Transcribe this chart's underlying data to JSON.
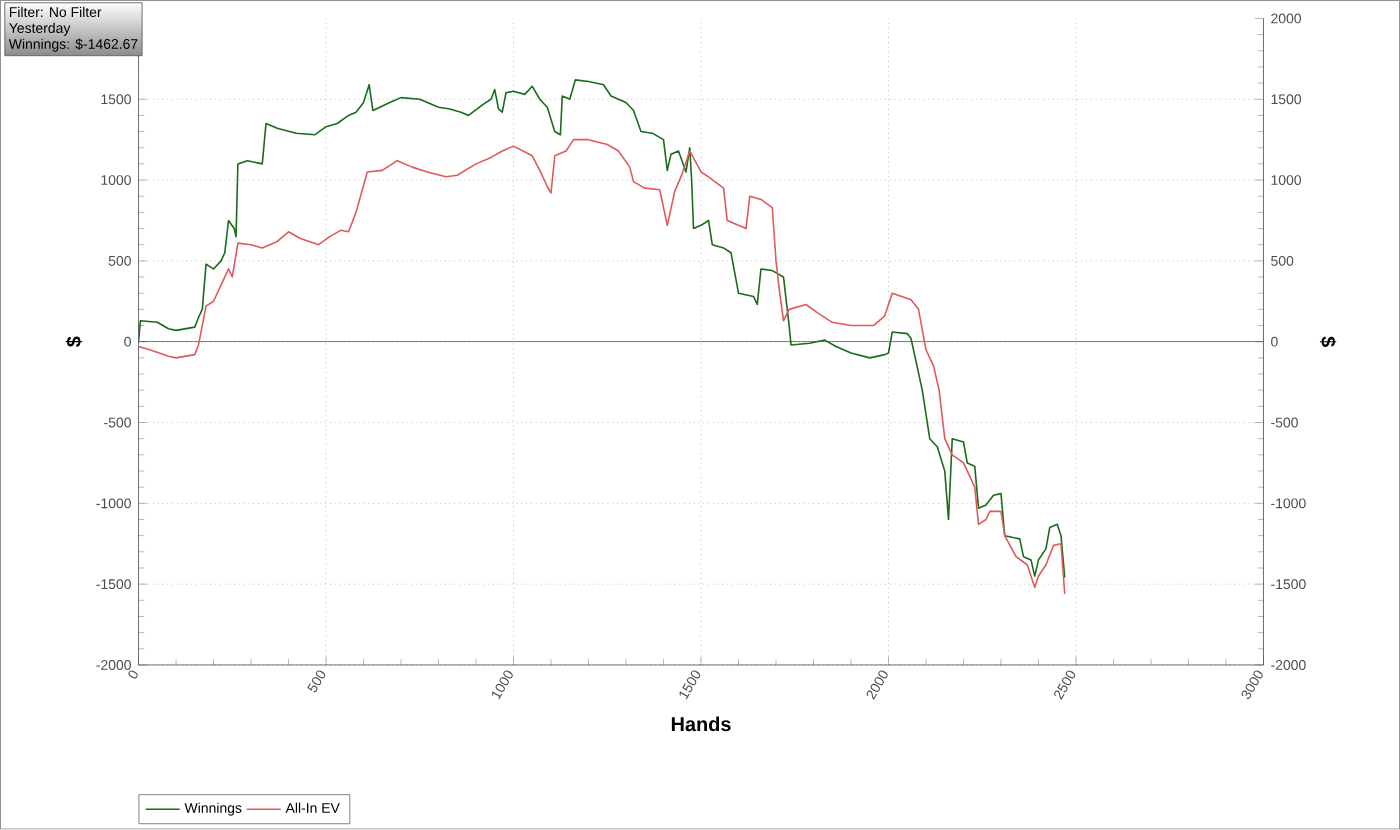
{
  "chart_data": {
    "type": "line",
    "xlabel": "Hands",
    "ylabel": "$",
    "y2label": "$",
    "annotations": [
      "Filter: No Filter",
      "Yesterday",
      "Winnings: $-1462.67"
    ],
    "xlim": [
      0,
      3000
    ],
    "xticks": [
      0,
      500,
      1000,
      1500,
      2000,
      2500,
      3000
    ],
    "ylim": [
      -2000,
      2000
    ],
    "yticks": [
      -2000,
      -1500,
      -1000,
      -500,
      0,
      500,
      1000,
      1500
    ],
    "y2lim": [
      -2000,
      2000
    ],
    "y2ticks": [
      -2000,
      -1500,
      -1000,
      -500,
      0,
      500,
      1000,
      1500,
      2000
    ],
    "grid": true,
    "legend": "bottom left",
    "marker": "none",
    "line_style": "solid",
    "ref_lines": [
      {
        "axis": "y",
        "value": 0,
        "color": "#404040"
      }
    ],
    "series": [
      {
        "name": "Winnings",
        "color": "#1a6b1a",
        "x": [
          0,
          5,
          50,
          80,
          100,
          150,
          160,
          170,
          180,
          200,
          220,
          230,
          240,
          255,
          260,
          265,
          290,
          330,
          340,
          370,
          420,
          470,
          500,
          530,
          560,
          580,
          600,
          615,
          625,
          670,
          700,
          750,
          800,
          830,
          860,
          880,
          920,
          940,
          950,
          960,
          970,
          980,
          1000,
          1030,
          1050,
          1070,
          1090,
          1110,
          1125,
          1130,
          1150,
          1165,
          1200,
          1240,
          1260,
          1300,
          1320,
          1340,
          1370,
          1400,
          1410,
          1420,
          1440,
          1460,
          1470,
          1475,
          1480,
          1500,
          1520,
          1530,
          1560,
          1580,
          1600,
          1640,
          1650,
          1660,
          1690,
          1720,
          1730,
          1735,
          1740,
          1790,
          1830,
          1860,
          1900,
          1950,
          1990,
          2000,
          2010,
          2050,
          2060,
          2090,
          2110,
          2130,
          2150,
          2160,
          2170,
          2200,
          2210,
          2230,
          2240,
          2260,
          2280,
          2300,
          2310,
          2350,
          2360,
          2380,
          2390,
          2400,
          2420,
          2430,
          2450,
          2460,
          2470
        ],
        "values": [
          0,
          130,
          120,
          80,
          70,
          90,
          150,
          200,
          480,
          450,
          500,
          550,
          750,
          700,
          650,
          1100,
          1120,
          1100,
          1350,
          1320,
          1290,
          1280,
          1330,
          1350,
          1400,
          1420,
          1480,
          1590,
          1430,
          1480,
          1510,
          1500,
          1450,
          1440,
          1420,
          1400,
          1470,
          1500,
          1560,
          1440,
          1420,
          1540,
          1550,
          1530,
          1580,
          1500,
          1450,
          1300,
          1280,
          1520,
          1500,
          1620,
          1610,
          1590,
          1520,
          1480,
          1430,
          1300,
          1290,
          1250,
          1060,
          1160,
          1180,
          1050,
          1200,
          1000,
          700,
          720,
          750,
          600,
          580,
          550,
          300,
          280,
          230,
          450,
          440,
          400,
          200,
          100,
          -20,
          -10,
          10,
          -30,
          -70,
          -100,
          -80,
          -70,
          60,
          50,
          20,
          -300,
          -600,
          -650,
          -800,
          -1100,
          -600,
          -620,
          -750,
          -770,
          -1030,
          -1010,
          -950,
          -940,
          -1200,
          -1220,
          -1330,
          -1350,
          -1450,
          -1350,
          -1280,
          -1150,
          -1130,
          -1200,
          -1460
        ]
      },
      {
        "name": "All-In EV",
        "color": "#e05a5a",
        "x": [
          0,
          30,
          80,
          100,
          150,
          160,
          180,
          200,
          220,
          240,
          250,
          265,
          300,
          330,
          370,
          400,
          430,
          480,
          510,
          540,
          560,
          580,
          610,
          650,
          690,
          730,
          770,
          820,
          850,
          900,
          940,
          970,
          1000,
          1050,
          1070,
          1090,
          1100,
          1110,
          1140,
          1160,
          1200,
          1250,
          1280,
          1310,
          1320,
          1350,
          1390,
          1410,
          1430,
          1450,
          1470,
          1500,
          1520,
          1560,
          1570,
          1620,
          1630,
          1660,
          1690,
          1700,
          1710,
          1720,
          1735,
          1780,
          1810,
          1850,
          1900,
          1960,
          1990,
          2010,
          2060,
          2080,
          2100,
          2120,
          2135,
          2150,
          2170,
          2200,
          2230,
          2240,
          2260,
          2270,
          2300,
          2310,
          2340,
          2370,
          2390,
          2400,
          2420,
          2440,
          2460,
          2470
        ],
        "values": [
          -30,
          -50,
          -90,
          -100,
          -80,
          -20,
          220,
          250,
          350,
          450,
          400,
          610,
          600,
          580,
          620,
          680,
          640,
          600,
          650,
          690,
          680,
          800,
          1050,
          1060,
          1120,
          1080,
          1050,
          1020,
          1030,
          1100,
          1140,
          1180,
          1210,
          1150,
          1060,
          960,
          920,
          1150,
          1180,
          1250,
          1250,
          1220,
          1180,
          1080,
          990,
          950,
          940,
          720,
          930,
          1040,
          1180,
          1050,
          1020,
          950,
          750,
          700,
          900,
          880,
          830,
          500,
          300,
          130,
          200,
          230,
          180,
          120,
          100,
          100,
          160,
          300,
          260,
          200,
          -50,
          -150,
          -300,
          -600,
          -700,
          -750,
          -900,
          -1130,
          -1100,
          -1050,
          -1050,
          -1200,
          -1330,
          -1380,
          -1520,
          -1450,
          -1380,
          -1260,
          -1250,
          -1560
        ]
      }
    ]
  }
}
